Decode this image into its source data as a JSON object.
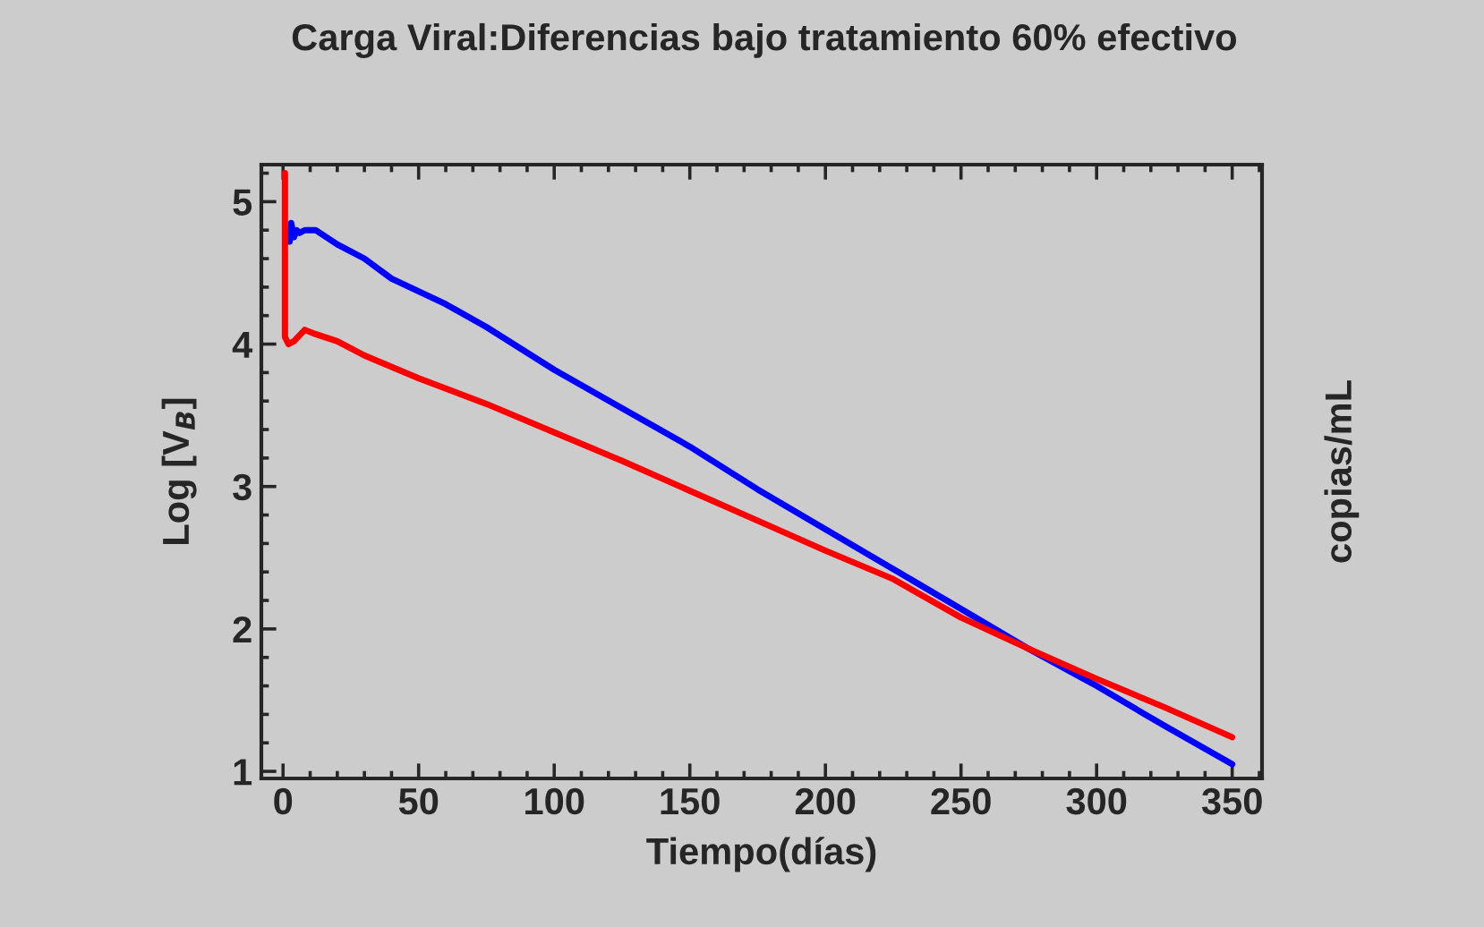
{
  "chart_data": {
    "type": "line",
    "title": "Carga Viral:Diferencias bajo tratamiento 60% efectivo",
    "xlabel": "Tiempo(días)",
    "ylabel": "Log [V$_{B}$]",
    "y2label": "copias/mL",
    "series": [
      {
        "color": "#0000ff",
        "x": [
          2.4,
          3,
          4,
          5,
          6,
          8,
          12,
          20,
          30,
          40,
          50,
          60,
          75,
          100,
          125,
          150,
          175,
          200,
          225,
          250,
          275,
          300,
          325,
          350
        ],
        "values": [
          4.72,
          4.85,
          4.75,
          4.8,
          4.78,
          4.8,
          4.8,
          4.7,
          4.6,
          4.46,
          4.37,
          4.28,
          4.12,
          3.82,
          3.55,
          3.28,
          2.98,
          2.7,
          2.42,
          2.14,
          1.86,
          1.6,
          1.32,
          1.05
        ]
      },
      {
        "color": "#ff0000",
        "x": [
          0.7,
          0.7,
          2,
          4,
          8,
          12,
          20,
          30,
          50,
          75,
          100,
          125,
          150,
          175,
          200,
          225,
          250,
          275,
          300,
          325,
          350
        ],
        "values": [
          5.2,
          4.05,
          4.0,
          4.02,
          4.1,
          4.07,
          4.02,
          3.92,
          3.76,
          3.58,
          3.38,
          3.18,
          2.97,
          2.76,
          2.55,
          2.35,
          2.08,
          1.86,
          1.65,
          1.45,
          1.24
        ]
      }
    ],
    "xlim": [
      -8,
      361
    ],
    "ylim": [
      0.95,
      5.26
    ],
    "xticks": [
      0,
      50,
      100,
      150,
      200,
      250,
      300,
      350
    ],
    "yticks": [
      1,
      2,
      3,
      4,
      5
    ],
    "grid": false,
    "legend": false,
    "line_style": "solid",
    "marker": "none"
  }
}
